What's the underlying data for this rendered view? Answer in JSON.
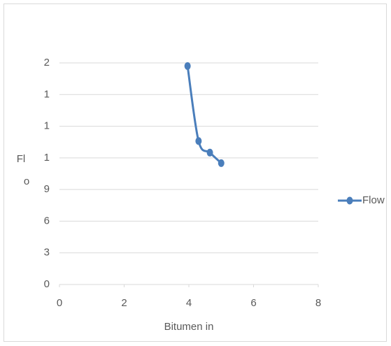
{
  "chart_data": {
    "type": "line",
    "x_label": "Bitumen in",
    "y_label": [
      "Fl",
      "o"
    ],
    "x": [
      3.96,
      4.3,
      4.65,
      5.0
    ],
    "series": [
      {
        "name": "Flow",
        "color": "#4a7ebb",
        "values": [
          20.7,
          13.6,
          12.5,
          11.5
        ]
      }
    ],
    "xlim": [
      0,
      8
    ],
    "xticks": [
      0,
      2,
      4,
      6,
      8
    ],
    "ylim": [
      0,
      21
    ],
    "yticks": [
      0,
      3,
      6,
      9,
      {
        "value": 12,
        "label": "1"
      },
      {
        "value": 15,
        "label": "1"
      },
      {
        "value": 18,
        "label": "1"
      },
      {
        "value": 21,
        "label": "2"
      }
    ],
    "grid": true,
    "legend": "right"
  }
}
